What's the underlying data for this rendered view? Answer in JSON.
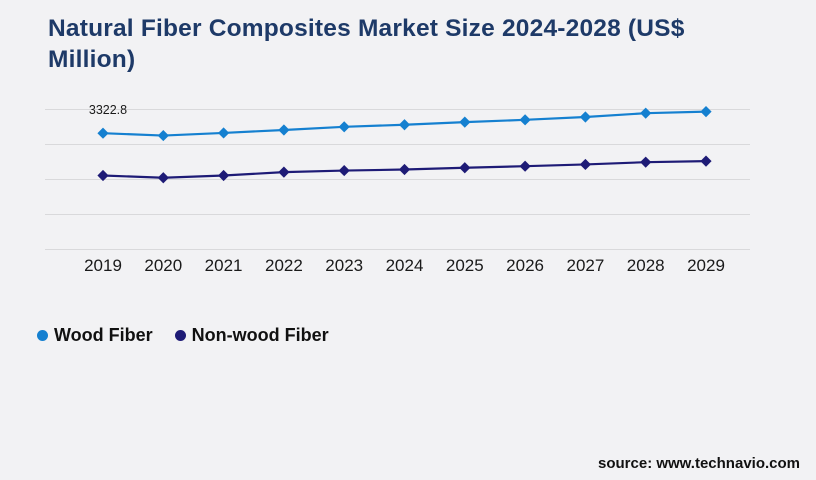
{
  "page": {
    "background_color": "#f2f2f4",
    "title_color": "#1e3a68",
    "gridline_color": "#d9d9db",
    "text_color": "#111111"
  },
  "header": {
    "title": "Natural Fiber Composites Market Size 2024-2028 (US$ Million)",
    "title_line1": "Natural Fiber Composites Market Size 2024-2028 (US$",
    "title_line2": "Million)"
  },
  "chart_data": {
    "type": "line",
    "title": "Natural Fiber Composites Market Size 2024-2028 (US$ Million)",
    "xlabel": "",
    "ylabel": "US$ Million",
    "categories": [
      "2019",
      "2020",
      "2021",
      "2022",
      "2023",
      "2024",
      "2025",
      "2026",
      "2027",
      "2028",
      "2029"
    ],
    "series": [
      {
        "name": "Wood Fiber",
        "color": "#1580d0",
        "marker": "diamond",
        "values": [
          3322.8,
          3255,
          3330,
          3415,
          3505,
          3565,
          3640,
          3705,
          3785,
          3895,
          3940
        ]
      },
      {
        "name": "Non-wood Fiber",
        "color": "#1e1b76",
        "marker": "diamond",
        "values": [
          2115,
          2050,
          2115,
          2210,
          2255,
          2285,
          2335,
          2380,
          2430,
          2495,
          2525
        ]
      }
    ],
    "data_labels": [
      {
        "series_index": 0,
        "category_index": 0,
        "text": "3322.8"
      }
    ],
    "ylim": [
      0,
      4500
    ],
    "gridline_values": [
      0,
      1000,
      2000,
      3000,
      4000
    ],
    "y_axis_labels_visible": false,
    "grid": true,
    "legend_position": "bottom-left"
  },
  "legend": {
    "items": [
      {
        "label": "Wood Fiber",
        "color": "#1580d0"
      },
      {
        "label": "Non-wood Fiber",
        "color": "#1e1b76"
      }
    ]
  },
  "footer": {
    "source_label": "source: www.technavio.com"
  }
}
